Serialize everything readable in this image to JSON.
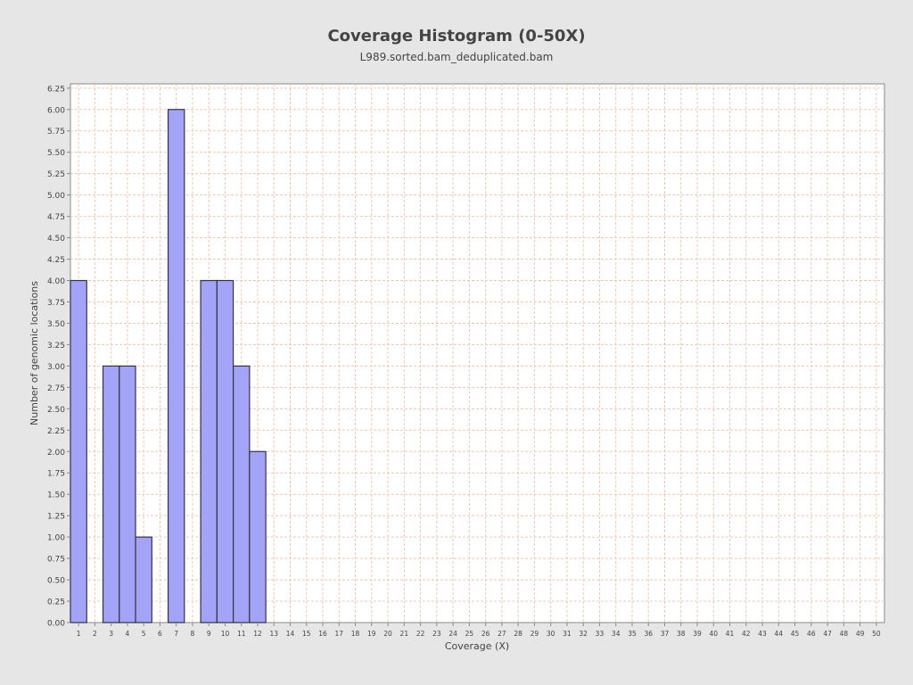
{
  "chart_data": {
    "type": "bar",
    "title": "Coverage Histogram (0-50X)",
    "subtitle": "L989.sorted.bam_deduplicated.bam",
    "xlabel": "Coverage (X)",
    "ylabel": "Number of genomic locations",
    "x": [
      1,
      2,
      3,
      4,
      5,
      6,
      7,
      8,
      9,
      10,
      11,
      12,
      13,
      14,
      15,
      16,
      17,
      18,
      19,
      20,
      21,
      22,
      23,
      24,
      25,
      26,
      27,
      28,
      29,
      30,
      31,
      32,
      33,
      34,
      35,
      36,
      37,
      38,
      39,
      40,
      41,
      42,
      43,
      44,
      45,
      46,
      47,
      48,
      49,
      50
    ],
    "values": [
      4,
      0,
      3,
      3,
      1,
      0,
      6,
      0,
      4,
      4,
      3,
      2,
      0,
      0,
      0,
      0,
      0,
      0,
      0,
      0,
      0,
      0,
      0,
      0,
      0,
      0,
      0,
      0,
      0,
      0,
      0,
      0,
      0,
      0,
      0,
      0,
      0,
      0,
      0,
      0,
      0,
      0,
      0,
      0,
      0,
      0,
      0,
      0,
      0,
      0
    ],
    "xlim": [
      0.5,
      50.5
    ],
    "ylim": [
      0,
      6.3
    ],
    "yticks": [
      "0.00",
      "0.25",
      "0.50",
      "0.75",
      "1.00",
      "1.25",
      "1.50",
      "1.75",
      "2.00",
      "2.25",
      "2.50",
      "2.75",
      "3.00",
      "3.25",
      "3.50",
      "3.75",
      "4.00",
      "4.25",
      "4.50",
      "4.75",
      "5.00",
      "5.25",
      "5.50",
      "5.75",
      "6.00",
      "6.25"
    ],
    "grid": true,
    "colors": {
      "bar_fill": "#a3a3f8",
      "bar_stroke": "#333344",
      "grid": "#f0c8b0",
      "plot_background": "#ffffff",
      "page_background": "#e6e6e6"
    }
  }
}
